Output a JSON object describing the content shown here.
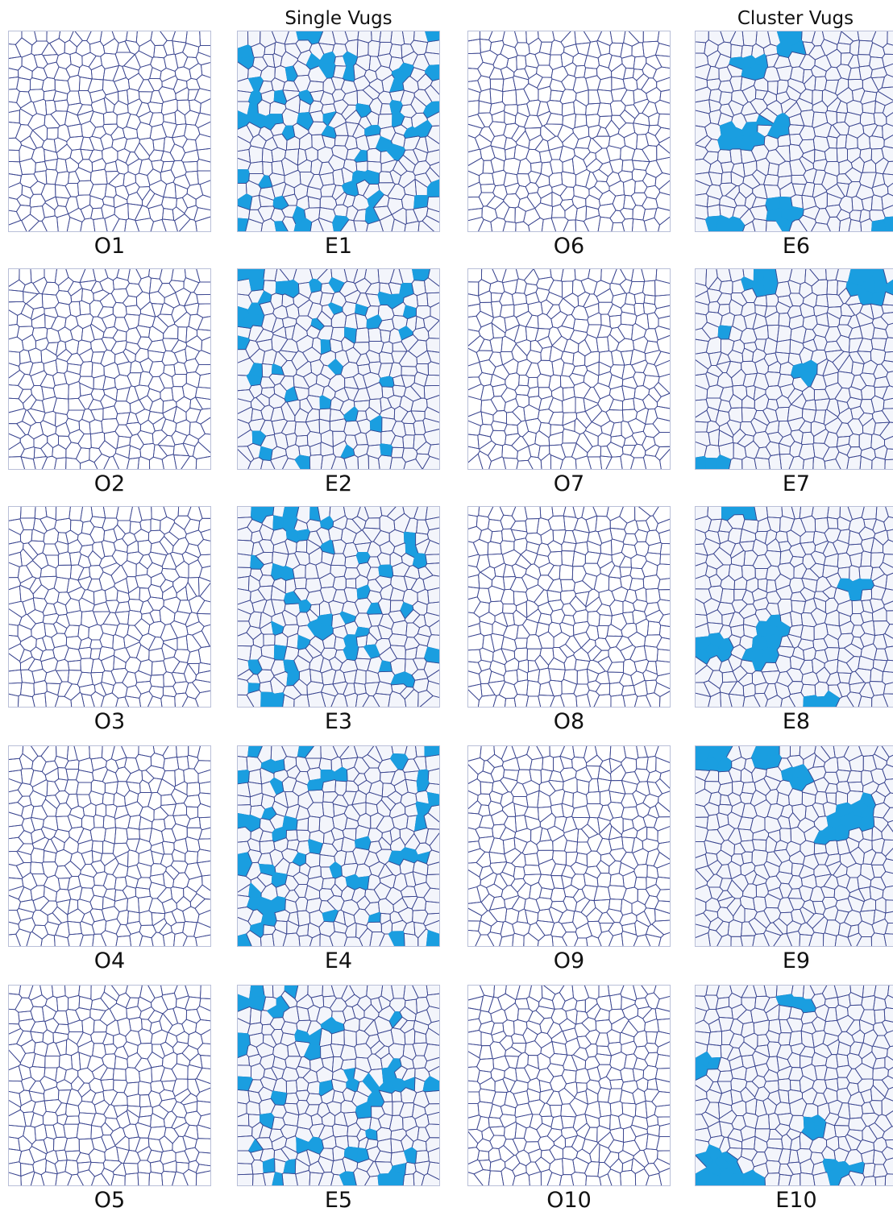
{
  "headers": {
    "single": "Single Vugs",
    "cluster": "Cluster Vugs"
  },
  "colors": {
    "edge": "#3b4690",
    "vug": "#1a9ee0",
    "vug_bg": "#f3f5fb",
    "tile_border": "#b9bfd8"
  },
  "panels": [
    {
      "label": "O1",
      "type": "original"
    },
    {
      "label": "E1",
      "type": "single"
    },
    {
      "label": "O6",
      "type": "original"
    },
    {
      "label": "E6",
      "type": "cluster"
    },
    {
      "label": "O2",
      "type": "original"
    },
    {
      "label": "E2",
      "type": "single"
    },
    {
      "label": "O7",
      "type": "original"
    },
    {
      "label": "E7",
      "type": "cluster"
    },
    {
      "label": "O3",
      "type": "original"
    },
    {
      "label": "E3",
      "type": "single"
    },
    {
      "label": "O8",
      "type": "original"
    },
    {
      "label": "E8",
      "type": "cluster"
    },
    {
      "label": "O4",
      "type": "original"
    },
    {
      "label": "E4",
      "type": "single"
    },
    {
      "label": "O9",
      "type": "original"
    },
    {
      "label": "E9",
      "type": "cluster"
    },
    {
      "label": "O5",
      "type": "original"
    },
    {
      "label": "E5",
      "type": "single"
    },
    {
      "label": "O10",
      "type": "original"
    },
    {
      "label": "E10",
      "type": "cluster"
    }
  ]
}
